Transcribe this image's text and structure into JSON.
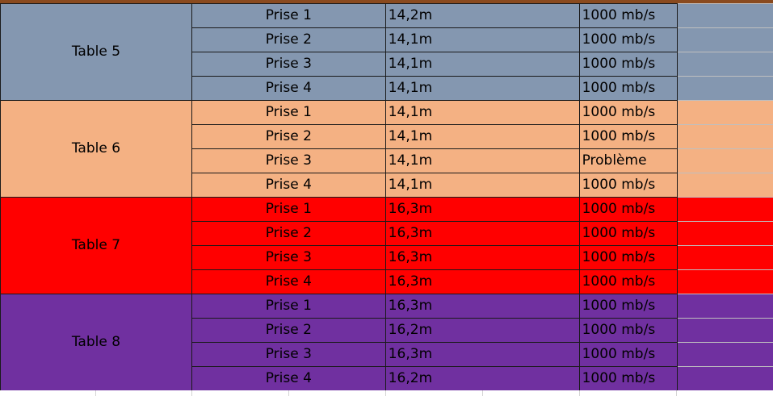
{
  "colors": {
    "group_5": "#8497b0",
    "group_6": "#f4b183",
    "group_7": "#ff0000",
    "group_8": "#7030a0",
    "border": "#1a1a1a",
    "top_strip": "#8a4a1e"
  },
  "groups": [
    {
      "label": "Table 5",
      "rows": [
        {
          "plug": "Prise 1",
          "length": "14,2m",
          "speed": "1000 mb/s"
        },
        {
          "plug": "Prise 2",
          "length": "14,1m",
          "speed": "1000 mb/s"
        },
        {
          "plug": "Prise 3",
          "length": "14,1m",
          "speed": "1000 mb/s"
        },
        {
          "plug": "Prise 4",
          "length": "14,1m",
          "speed": "1000 mb/s"
        }
      ]
    },
    {
      "label": "Table 6",
      "rows": [
        {
          "plug": "Prise 1",
          "length": "14,1m",
          "speed": "1000 mb/s"
        },
        {
          "plug": "Prise 2",
          "length": "14,1m",
          "speed": "1000 mb/s"
        },
        {
          "plug": "Prise 3",
          "length": "14,1m",
          "speed": "Problème"
        },
        {
          "plug": "Prise 4",
          "length": "14,1m",
          "speed": "1000 mb/s"
        }
      ]
    },
    {
      "label": "Table 7",
      "rows": [
        {
          "plug": "Prise 1",
          "length": "16,3m",
          "speed": "1000 mb/s"
        },
        {
          "plug": "Prise 2",
          "length": "16,3m",
          "speed": "1000 mb/s"
        },
        {
          "plug": "Prise 3",
          "length": "16,3m",
          "speed": "1000 mb/s"
        },
        {
          "plug": "Prise 4",
          "length": "16,3m",
          "speed": "1000 mb/s"
        }
      ]
    },
    {
      "label": "Table 8",
      "rows": [
        {
          "plug": "Prise 1",
          "length": "16,3m",
          "speed": "1000 mb/s"
        },
        {
          "plug": "Prise 2",
          "length": "16,2m",
          "speed": "1000 mb/s"
        },
        {
          "plug": "Prise 3",
          "length": "16,3m",
          "speed": "1000 mb/s"
        },
        {
          "plug": "Prise 4",
          "length": "16,2m",
          "speed": "1000 mb/s"
        }
      ]
    }
  ]
}
